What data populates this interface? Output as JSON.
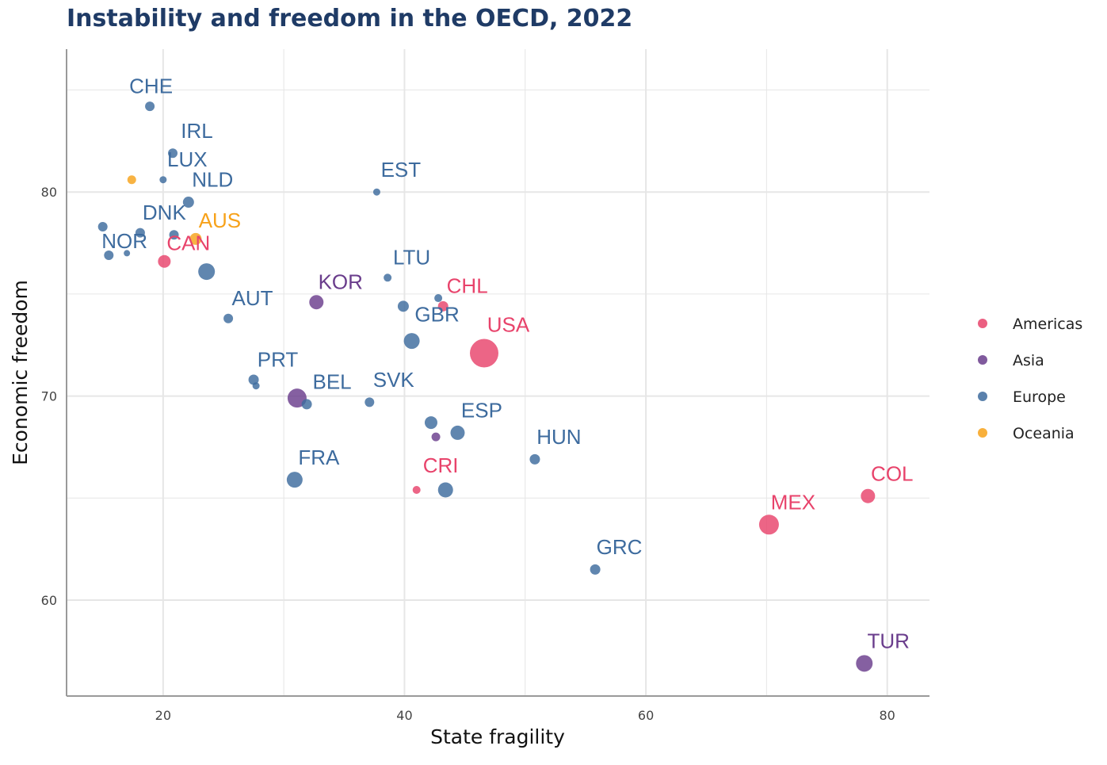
{
  "chart_data": {
    "type": "scatter",
    "title": "Instability and freedom in the OECD, 2022",
    "xlabel": "State fragility",
    "ylabel": "Economic freedom",
    "xlim": [
      12,
      83.5
    ],
    "ylim": [
      55.3,
      87.0
    ],
    "x_ticks": [
      20,
      40,
      60,
      80
    ],
    "y_ticks": [
      60,
      70,
      80
    ],
    "grid": true,
    "legend_position": "right",
    "legend": [
      {
        "name": "Americas",
        "color": "#e8436b"
      },
      {
        "name": "Asia",
        "color": "#6a3d8c"
      },
      {
        "name": "Europe",
        "color": "#3d6b9e"
      },
      {
        "name": "Oceania",
        "color": "#f7a21a"
      }
    ],
    "points": [
      {
        "label": "CHE",
        "x": 18.9,
        "y": 84.2,
        "region": "Europe",
        "size": 12,
        "lx": 19.0,
        "ly": 85.2
      },
      {
        "label": "IRL",
        "x": 20.8,
        "y": 81.9,
        "region": "Europe",
        "size": 12,
        "lx": 22.8,
        "ly": 83.0
      },
      {
        "label": "LUX",
        "x": 20.0,
        "y": 80.6,
        "region": "Europe",
        "size": 9,
        "lx": 22.0,
        "ly": 81.6
      },
      {
        "label": "NLD",
        "x": 22.1,
        "y": 79.5,
        "region": "Europe",
        "size": 14,
        "lx": 24.1,
        "ly": 80.6
      },
      {
        "label": "",
        "x": 17.4,
        "y": 80.6,
        "region": "Oceania",
        "size": 11,
        "lx": null,
        "ly": null
      },
      {
        "label": "EST",
        "x": 37.7,
        "y": 80.0,
        "region": "Europe",
        "size": 9,
        "lx": 39.7,
        "ly": 81.1
      },
      {
        "label": "DNK",
        "x": 18.1,
        "y": 78.0,
        "region": "Europe",
        "size": 12,
        "lx": 20.1,
        "ly": 79.0
      },
      {
        "label": "AUS",
        "x": 22.7,
        "y": 77.7,
        "region": "Oceania",
        "size": 15,
        "lx": 24.7,
        "ly": 78.6
      },
      {
        "label": "NOR",
        "x": 15.0,
        "y": 78.3,
        "region": "Europe",
        "size": 12,
        "lx": 16.8,
        "ly": 77.6
      },
      {
        "label": "",
        "x": 20.9,
        "y": 77.9,
        "region": "Europe",
        "size": 12,
        "lx": null,
        "ly": null
      },
      {
        "label": "CAN",
        "x": 20.1,
        "y": 76.6,
        "region": "Americas",
        "size": 16,
        "lx": 22.1,
        "ly": 77.5
      },
      {
        "label": "",
        "x": 15.5,
        "y": 76.9,
        "region": "Europe",
        "size": 12,
        "lx": null,
        "ly": null
      },
      {
        "label": "",
        "x": 17.0,
        "y": 77.0,
        "region": "Europe",
        "size": 8,
        "lx": null,
        "ly": null
      },
      {
        "label": "",
        "x": 23.6,
        "y": 76.1,
        "region": "Europe",
        "size": 21,
        "lx": null,
        "ly": null
      },
      {
        "label": "LTU",
        "x": 38.6,
        "y": 75.8,
        "region": "Europe",
        "size": 10,
        "lx": 40.6,
        "ly": 76.8
      },
      {
        "label": "AUT",
        "x": 25.4,
        "y": 73.8,
        "region": "Europe",
        "size": 12,
        "lx": 27.4,
        "ly": 74.8
      },
      {
        "label": "KOR",
        "x": 32.7,
        "y": 74.6,
        "region": "Asia",
        "size": 18,
        "lx": 34.7,
        "ly": 75.6
      },
      {
        "label": "CHL",
        "x": 43.2,
        "y": 74.4,
        "region": "Americas",
        "size": 13,
        "lx": 45.2,
        "ly": 75.4
      },
      {
        "label": "",
        "x": 42.8,
        "y": 74.8,
        "region": "Europe",
        "size": 10,
        "lx": null,
        "ly": null
      },
      {
        "label": "GBR",
        "x": 39.9,
        "y": 74.4,
        "region": "Europe",
        "size": 14,
        "lx": 42.7,
        "ly": 74.0
      },
      {
        "label": "",
        "x": 40.6,
        "y": 72.7,
        "region": "Europe",
        "size": 20,
        "lx": null,
        "ly": null
      },
      {
        "label": "USA",
        "x": 46.6,
        "y": 72.1,
        "region": "Americas",
        "size": 36,
        "lx": 48.6,
        "ly": 73.5
      },
      {
        "label": "PRT",
        "x": 27.5,
        "y": 70.8,
        "region": "Europe",
        "size": 13,
        "lx": 29.5,
        "ly": 71.8
      },
      {
        "label": "",
        "x": 27.7,
        "y": 70.5,
        "region": "Europe",
        "size": 9,
        "lx": null,
        "ly": null
      },
      {
        "label": "BEL",
        "x": 31.9,
        "y": 69.6,
        "region": "Europe",
        "size": 13,
        "lx": 34.0,
        "ly": 70.7
      },
      {
        "label": "",
        "x": 31.1,
        "y": 69.9,
        "region": "Asia",
        "size": 24,
        "lx": null,
        "ly": null
      },
      {
        "label": "SVK",
        "x": 37.1,
        "y": 69.7,
        "region": "Europe",
        "size": 12,
        "lx": 39.1,
        "ly": 70.8
      },
      {
        "label": "ESP",
        "x": 44.4,
        "y": 68.2,
        "region": "Europe",
        "size": 18,
        "lx": 46.4,
        "ly": 69.3
      },
      {
        "label": "",
        "x": 42.2,
        "y": 68.7,
        "region": "Europe",
        "size": 16,
        "lx": null,
        "ly": null
      },
      {
        "label": "",
        "x": 42.6,
        "y": 68.0,
        "region": "Asia",
        "size": 11,
        "lx": null,
        "ly": null
      },
      {
        "label": "HUN",
        "x": 50.8,
        "y": 66.9,
        "region": "Europe",
        "size": 13,
        "lx": 52.8,
        "ly": 68.0
      },
      {
        "label": "FRA",
        "x": 30.9,
        "y": 65.9,
        "region": "Europe",
        "size": 20,
        "lx": 32.9,
        "ly": 67.0
      },
      {
        "label": "CRI",
        "x": 41.0,
        "y": 65.4,
        "region": "Americas",
        "size": 10,
        "lx": 43.0,
        "ly": 66.6
      },
      {
        "label": "",
        "x": 43.4,
        "y": 65.4,
        "region": "Europe",
        "size": 19,
        "lx": null,
        "ly": null
      },
      {
        "label": "COL",
        "x": 78.4,
        "y": 65.1,
        "region": "Americas",
        "size": 18,
        "lx": 80.4,
        "ly": 66.2
      },
      {
        "label": "MEX",
        "x": 70.2,
        "y": 63.7,
        "region": "Americas",
        "size": 25,
        "lx": 72.2,
        "ly": 64.8
      },
      {
        "label": "GRC",
        "x": 55.8,
        "y": 61.5,
        "region": "Europe",
        "size": 13,
        "lx": 57.8,
        "ly": 62.6
      },
      {
        "label": "TUR",
        "x": 78.1,
        "y": 56.9,
        "region": "Asia",
        "size": 21,
        "lx": 80.1,
        "ly": 58.0
      }
    ]
  }
}
